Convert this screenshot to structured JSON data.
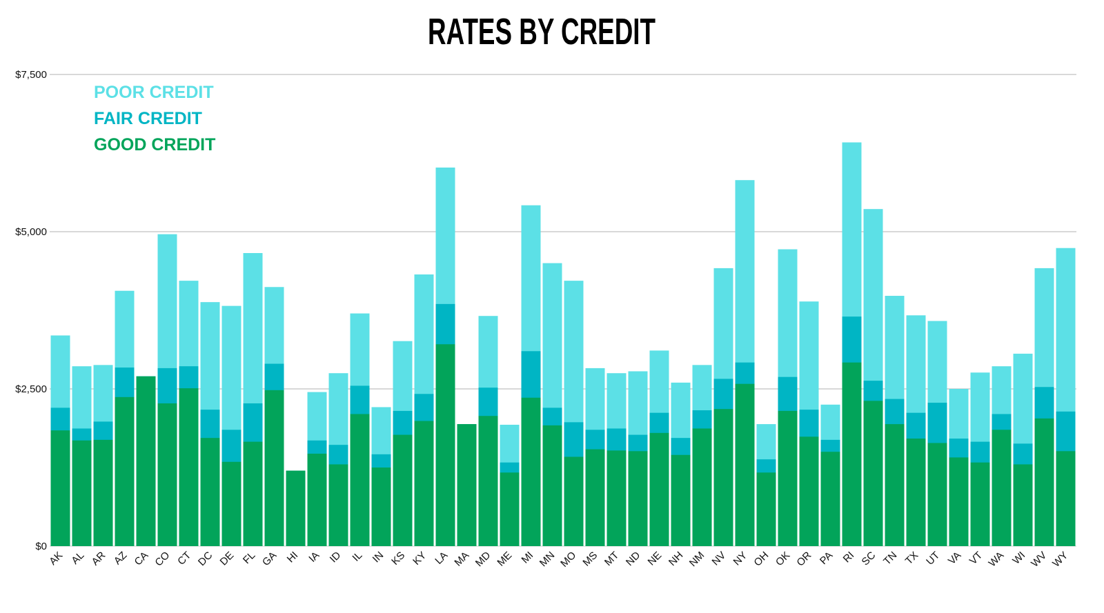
{
  "chart_data": {
    "type": "bar",
    "stacked": "overlay",
    "title": "RATES BY CREDIT",
    "xlabel": "",
    "ylabel": "",
    "ylim": [
      0,
      7500
    ],
    "yticks": [
      0,
      2500,
      5000,
      7500
    ],
    "ytick_labels": [
      "$0",
      "$2,500",
      "$5,000",
      "$7,500"
    ],
    "grid": true,
    "legend_position": "top-left",
    "categories": [
      "AK",
      "AL",
      "AR",
      "AZ",
      "CA",
      "CO",
      "CT",
      "DC",
      "DE",
      "FL",
      "GA",
      "HI",
      "IA",
      "ID",
      "IL",
      "IN",
      "KS",
      "KY",
      "LA",
      "MA",
      "MD",
      "ME",
      "MI",
      "MN",
      "MO",
      "MS",
      "MT",
      "ND",
      "NE",
      "NH",
      "NM",
      "NV",
      "NY",
      "OH",
      "OK",
      "OR",
      "PA",
      "RI",
      "SC",
      "TN",
      "TX",
      "UT",
      "VA",
      "VT",
      "WA",
      "WI",
      "WV",
      "WY"
    ],
    "series": [
      {
        "name": "POOR CREDIT",
        "color": "#5ce0e6",
        "values": [
          3350,
          2860,
          2880,
          4060,
          2700,
          4960,
          4220,
          3880,
          3820,
          4660,
          4120,
          1200,
          2450,
          2750,
          3700,
          2210,
          3260,
          4320,
          6020,
          1940,
          3660,
          1930,
          5420,
          4500,
          4220,
          2830,
          2750,
          2780,
          3110,
          2600,
          2880,
          4420,
          5820,
          1940,
          4720,
          3890,
          2250,
          6420,
          5360,
          3980,
          3670,
          3580,
          2500,
          2760,
          2860,
          3060,
          4420,
          4740
        ]
      },
      {
        "name": "FAIR CREDIT",
        "color": "#00b5c4",
        "values": [
          2200,
          1870,
          1980,
          2840,
          2700,
          2830,
          2860,
          2170,
          1850,
          2270,
          2900,
          1200,
          1680,
          1610,
          2550,
          1460,
          2150,
          2420,
          3850,
          1940,
          2520,
          1330,
          3100,
          2200,
          1970,
          1850,
          1870,
          1770,
          2120,
          1720,
          2160,
          2660,
          2920,
          1380,
          2690,
          2170,
          1690,
          3650,
          2630,
          2340,
          2120,
          2280,
          1710,
          1660,
          2100,
          1630,
          2530,
          2140
        ]
      },
      {
        "name": "GOOD CREDIT",
        "color": "#02a45a",
        "values": [
          1840,
          1680,
          1690,
          2370,
          2700,
          2270,
          2510,
          1720,
          1340,
          1660,
          2480,
          1200,
          1470,
          1300,
          2100,
          1250,
          1770,
          1990,
          3210,
          1940,
          2070,
          1170,
          2360,
          1920,
          1420,
          1540,
          1520,
          1510,
          1800,
          1450,
          1870,
          2180,
          2580,
          1170,
          2150,
          1740,
          1500,
          2920,
          2310,
          1940,
          1710,
          1640,
          1410,
          1330,
          1850,
          1300,
          2030,
          1510
        ]
      }
    ]
  }
}
